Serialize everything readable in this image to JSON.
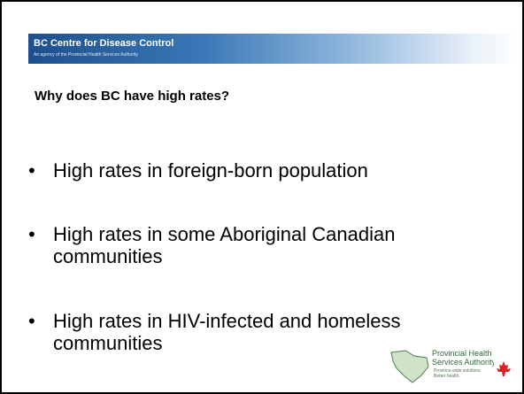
{
  "header": {
    "organization": "BC Centre for Disease Control",
    "tagline": "An agency of the Provincial Health Services Authority"
  },
  "heading": "Why does BC have high rates?",
  "bullets": [
    [
      "High rates in foreign-born population"
    ],
    [
      "High rates in some Aboriginal Canadian",
      "communities"
    ],
    [
      "High rates in HIV-infected and homeless",
      "communities"
    ]
  ],
  "footer": {
    "logo_name": [
      "Provincial Health",
      "Services Authority"
    ],
    "logo_tagline": [
      "Province-wide solutions.",
      "Better health."
    ]
  }
}
